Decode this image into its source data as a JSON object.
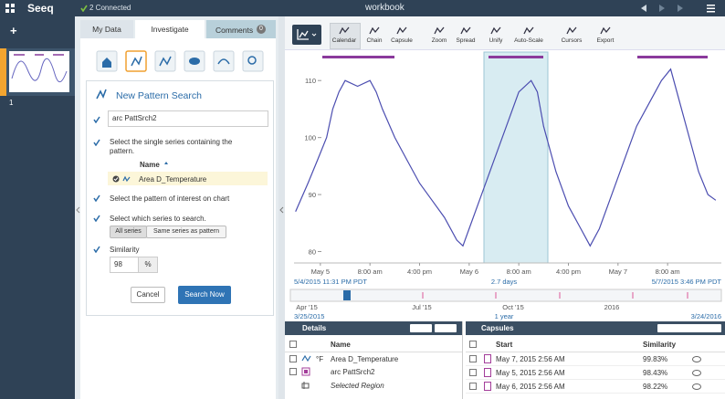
{
  "header": {
    "logo": "Seeq",
    "connection": "2 Connected",
    "title": "workbook"
  },
  "worksheets": {
    "add": "+",
    "number": "1"
  },
  "tabs": {
    "my_data": "My Data",
    "investigate": "Investigate",
    "comments": "Comments",
    "comments_count": "0"
  },
  "pattern_search": {
    "title": "New Pattern Search",
    "name": "arc PattSrch2",
    "step_series": "Select the single series containing the pattern.",
    "column": "Name",
    "series": "Area D_Temperature",
    "step_pattern": "Select the pattern of interest on chart",
    "step_search": "Select which series to search.",
    "options": [
      "All series",
      "Same series as pattern"
    ],
    "similarity_label": "Similarity",
    "similarity": "98",
    "unit": "%",
    "cancel": "Cancel",
    "submit": "Search Now"
  },
  "toolbar": {
    "buttons": [
      "Calendar",
      "Chain",
      "Capsule",
      "Zoom",
      "Spread",
      "Unify",
      "Auto-Scale",
      "Cursors",
      "Export"
    ]
  },
  "chart_data": {
    "type": "line",
    "x": [
      "2015-05-04T20:00",
      "2015-05-04T22:00",
      "2015-05-04T23:31",
      "2015-05-05T01:00",
      "2015-05-05T02:00",
      "2015-05-05T03:00",
      "2015-05-05T04:00",
      "2015-05-05T06:00",
      "2015-05-05T08:00",
      "2015-05-05T09:00",
      "2015-05-05T10:00",
      "2015-05-05T12:00",
      "2015-05-05T14:00",
      "2015-05-05T16:00",
      "2015-05-05T18:00",
      "2015-05-05T20:00",
      "2015-05-05T22:00",
      "2015-05-05T23:00",
      "2015-05-06T00:00",
      "2015-05-06T02:00",
      "2015-05-06T04:00",
      "2015-05-06T06:00",
      "2015-05-06T08:00",
      "2015-05-06T10:00",
      "2015-05-06T11:00",
      "2015-05-06T12:00",
      "2015-05-06T14:00",
      "2015-05-06T16:00",
      "2015-05-06T18:00",
      "2015-05-06T19:30",
      "2015-05-06T21:00",
      "2015-05-06T23:00",
      "2015-05-07T01:00",
      "2015-05-07T03:00",
      "2015-05-07T05:00",
      "2015-05-07T07:00",
      "2015-05-07T08:30",
      "2015-05-07T10:00",
      "2015-05-07T12:00",
      "2015-05-07T13:00",
      "2015-05-07T14:30",
      "2015-05-07T15:46"
    ],
    "series": [
      {
        "color": "#4b4db0",
        "values": [
          87,
          92,
          96,
          100,
          105,
          108,
          110,
          109,
          110,
          108,
          105,
          100,
          96,
          92,
          89,
          86,
          82,
          81,
          84,
          90,
          96,
          102,
          108,
          110,
          108,
          102,
          94,
          88,
          84,
          81,
          84,
          90,
          96,
          102,
          106,
          110,
          112,
          106,
          98,
          94,
          90,
          89
        ]
      }
    ],
    "xlim": [
      "2015-05-04T19:45",
      "2015-05-07T16:40"
    ],
    "xticks": [
      {
        "value": "2015-05-05T00:00",
        "label": "May 5"
      },
      {
        "value": "2015-05-05T08:00",
        "label": "8:00 am"
      },
      {
        "value": "2015-05-05T16:00",
        "label": "4:00 pm"
      },
      {
        "value": "2015-05-06T00:00",
        "label": "May 6"
      },
      {
        "value": "2015-05-06T08:00",
        "label": "8:00 am"
      },
      {
        "value": "2015-05-06T16:00",
        "label": "4:00 pm"
      },
      {
        "value": "2015-05-07T00:00",
        "label": "May 7"
      },
      {
        "value": "2015-05-07T08:00",
        "label": "8:00 am"
      }
    ],
    "ylim": [
      78,
      115
    ],
    "yticks": [
      80,
      90,
      100,
      110
    ],
    "range_start": "5/4/2015 11:31 PM PDT",
    "range_duration": "2.7 days",
    "range_end": "5/7/2015 3:46 PM PDT"
  },
  "timeline": {
    "ticks": [
      "Apr '15",
      "Jul '15",
      "Oct '15",
      "2016"
    ],
    "start": "3/25/2015",
    "duration": "1 year",
    "end": "3/24/2016"
  },
  "details": {
    "title": "Details",
    "column": "Name",
    "rows": [
      {
        "unit": "°F",
        "name": "Area D_Temperature"
      },
      {
        "name": "arc PattSrch2"
      },
      {
        "name": "Selected Region"
      }
    ]
  },
  "capsules": {
    "title": "Capsules",
    "columns": [
      "Start",
      "Similarity"
    ],
    "rows": [
      [
        "May 7, 2015 2:56 AM",
        "99.83%"
      ],
      [
        "May 5, 2015 2:56 AM",
        "98.43%"
      ],
      [
        "May 6, 2015 2:56 AM",
        "98.22%"
      ]
    ]
  }
}
